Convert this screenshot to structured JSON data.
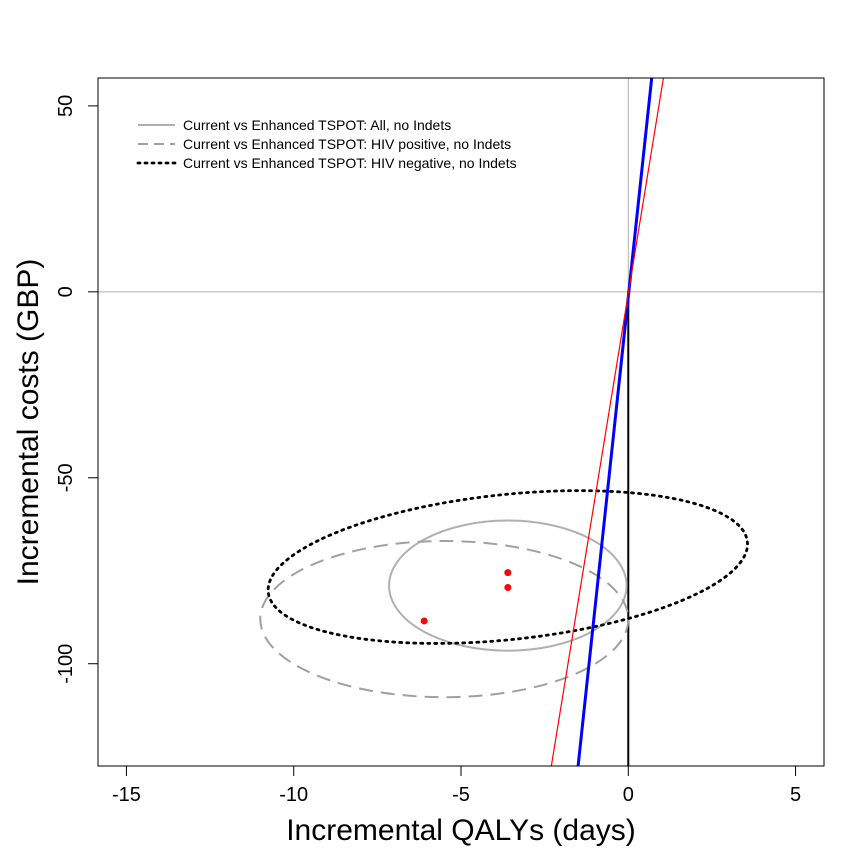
{
  "chart_data": {
    "type": "scatter",
    "xlabel": "Incremental QALYs (days)",
    "ylabel": "Incremental costs (GBP)",
    "xlim": [
      -15.85,
      5.85
    ],
    "ylim": [
      -127.5,
      57.5
    ],
    "x_ticks": [
      -15,
      -10,
      -5,
      0,
      5
    ],
    "y_ticks": [
      -100,
      -50,
      0,
      50
    ],
    "grid": false,
    "reference_lines": {
      "horizontal_zero": {
        "y": 0,
        "color": "#b0b0b0"
      },
      "vertical_zero_upper": {
        "x": 0,
        "color": "#b0b0b0"
      },
      "vertical_zero_lower": {
        "x": 0,
        "color": "#000000"
      }
    },
    "threshold_lines": [
      {
        "color": "#0000ff",
        "points": [
          [
            -1.5,
            -127.5
          ],
          [
            0.7,
            57.5
          ]
        ]
      },
      {
        "color": "#ff0000",
        "points": [
          [
            -2.3,
            -127.5
          ],
          [
            1.05,
            57.5
          ]
        ]
      }
    ],
    "points": [
      {
        "x": -3.6,
        "y": -75.5,
        "color": "#ff0000"
      },
      {
        "x": -3.6,
        "y": -79.5,
        "color": "#ff0000"
      },
      {
        "x": -6.1,
        "y": -88.5,
        "color": "#ff0000"
      }
    ],
    "ellipses": [
      {
        "cx": -3.6,
        "cy": -79,
        "rx": 3.55,
        "ry": 17.5,
        "color": "#b0b0b0",
        "style": "solid"
      },
      {
        "cx": -5.5,
        "cy": -88,
        "rx": 5.5,
        "ry": 21,
        "color": "#a0a0a0",
        "style": "dashed"
      },
      {
        "cx": -3.6,
        "cy": -74,
        "rx": 7.2,
        "ry": 19.5,
        "rotation_deg": -6,
        "color": "#000000",
        "style": "dotted"
      }
    ],
    "legend": {
      "position": "top-left",
      "entries": [
        {
          "label": "Current vs Enhanced TSPOT: All, no Indets",
          "style": "solid",
          "color": "#b0b0b0"
        },
        {
          "label": "Current vs Enhanced TSPOT: HIV positive, no Indets",
          "style": "dashed",
          "color": "#a0a0a0"
        },
        {
          "label": "Current vs Enhanced TSPOT: HIV negative, no Indets",
          "style": "dotted",
          "color": "#000000"
        }
      ]
    }
  }
}
